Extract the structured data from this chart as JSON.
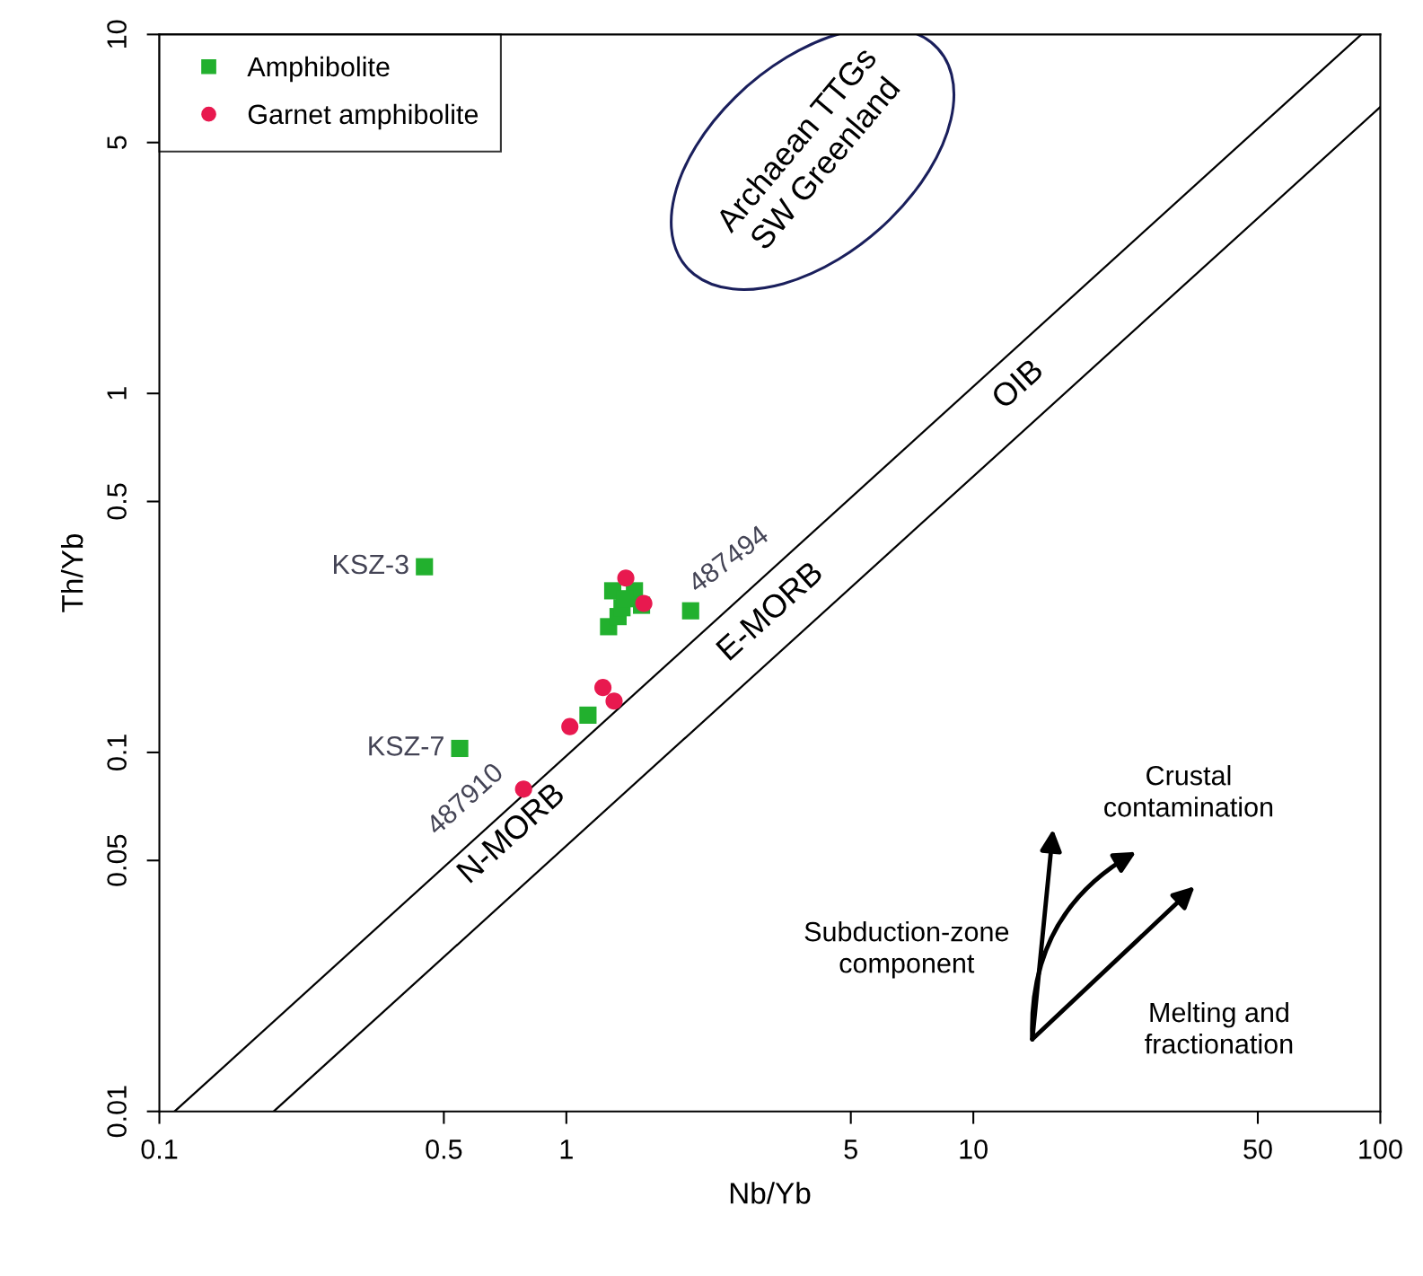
{
  "chart_data": {
    "type": "scatter",
    "xlabel": "Nb/Yb",
    "ylabel": "Th/Yb",
    "log": "xy",
    "xlim": [
      0.1,
      100
    ],
    "ylim": [
      0.01,
      10
    ],
    "xticks": [
      0.1,
      0.5,
      1,
      5,
      10,
      50,
      100
    ],
    "yticks": [
      0.01,
      0.05,
      0.1,
      0.5,
      1,
      5,
      10
    ],
    "grid": false,
    "legend": "top left",
    "series": [
      {
        "name": "Amphibolite",
        "color": "#22b02e",
        "marker": "square",
        "x": [
          0.448,
          0.547,
          2.02,
          1.13,
          1.27,
          1.34,
          1.37,
          1.3,
          1.47,
          1.39,
          1.53
        ],
        "values": [
          0.329,
          0.1026,
          0.248,
          0.127,
          0.224,
          0.239,
          0.253,
          0.282,
          0.282,
          0.268,
          0.257
        ]
      },
      {
        "name": "Garnet amphibolite",
        "color": "#e8194f",
        "marker": "circle",
        "x": [
          1.4,
          1.55,
          1.23,
          1.31,
          1.02,
          0.785
        ],
        "values": [
          0.306,
          0.26,
          0.1516,
          0.139,
          0.118,
          0.079
        ]
      },
      {
        "type": "line",
        "color": "#000000",
        "marker": "none",
        "x": [
          0.109,
          89.8
        ],
        "values": [
          0.01,
          10
        ]
      },
      {
        "type": "line",
        "color": "#000000",
        "marker": "none",
        "x": [
          0.191,
          100
        ],
        "values": [
          0.01,
          6.28
        ]
      }
    ],
    "annotations": [
      {
        "text": "KSZ-3",
        "x": 0.448,
        "y": 0.329
      },
      {
        "text": "KSZ-7",
        "x": 0.547,
        "y": 0.1026
      },
      {
        "text": "487494",
        "x": 2.02,
        "y": 0.248
      },
      {
        "text": "487910",
        "x": 0.785,
        "y": 0.079
      },
      "N-MORB",
      "E-MORB",
      "OIB",
      "Archaean TTGs\nSW Greenland",
      "Crustal\ncontamination",
      "Subduction-zone\ncomponent",
      "Melting and\nfractionation"
    ]
  }
}
